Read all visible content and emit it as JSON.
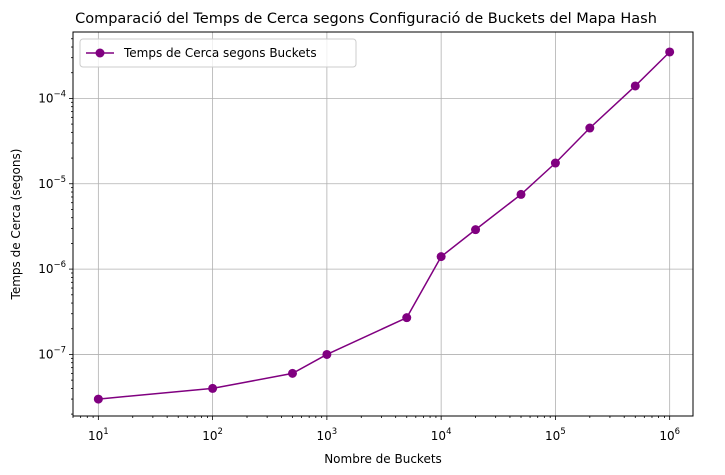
{
  "chart_data": {
    "type": "line",
    "title": "Comparació del Temps de Cerca segons Configuració de Buckets del Mapa Hash",
    "xlabel": "Nombre de Buckets",
    "ylabel": "Temps de Cerca (segons)",
    "xscale": "log",
    "yscale": "log",
    "xlim": [
      6,
      1600000
    ],
    "ylim": [
      1.9e-08,
      0.0006
    ],
    "grid": true,
    "legend_position": "top-left",
    "x_ticks": [
      {
        "base": "10",
        "exp": "1",
        "value": 10
      },
      {
        "base": "10",
        "exp": "2",
        "value": 100
      },
      {
        "base": "10",
        "exp": "3",
        "value": 1000
      },
      {
        "base": "10",
        "exp": "4",
        "value": 10000
      },
      {
        "base": "10",
        "exp": "5",
        "value": 100000
      },
      {
        "base": "10",
        "exp": "6",
        "value": 1000000
      }
    ],
    "y_ticks": [
      {
        "base": "10",
        "exp": "−7",
        "value": 1e-07
      },
      {
        "base": "10",
        "exp": "−6",
        "value": 1e-06
      },
      {
        "base": "10",
        "exp": "−5",
        "value": 1e-05
      },
      {
        "base": "10",
        "exp": "−4",
        "value": 0.0001
      }
    ],
    "series": [
      {
        "name": "Temps de Cerca segons Buckets",
        "color": "#800080",
        "marker": "circle",
        "x": [
          10,
          100,
          500,
          1000,
          5000,
          10000,
          20000,
          50000,
          100000,
          200000,
          500000,
          1000000
        ],
        "y": [
          3e-08,
          4e-08,
          6e-08,
          1e-07,
          2.7e-07,
          1.4e-06,
          2.9e-06,
          7.5e-06,
          1.75e-05,
          4.5e-05,
          0.00014,
          0.00035
        ]
      }
    ]
  }
}
